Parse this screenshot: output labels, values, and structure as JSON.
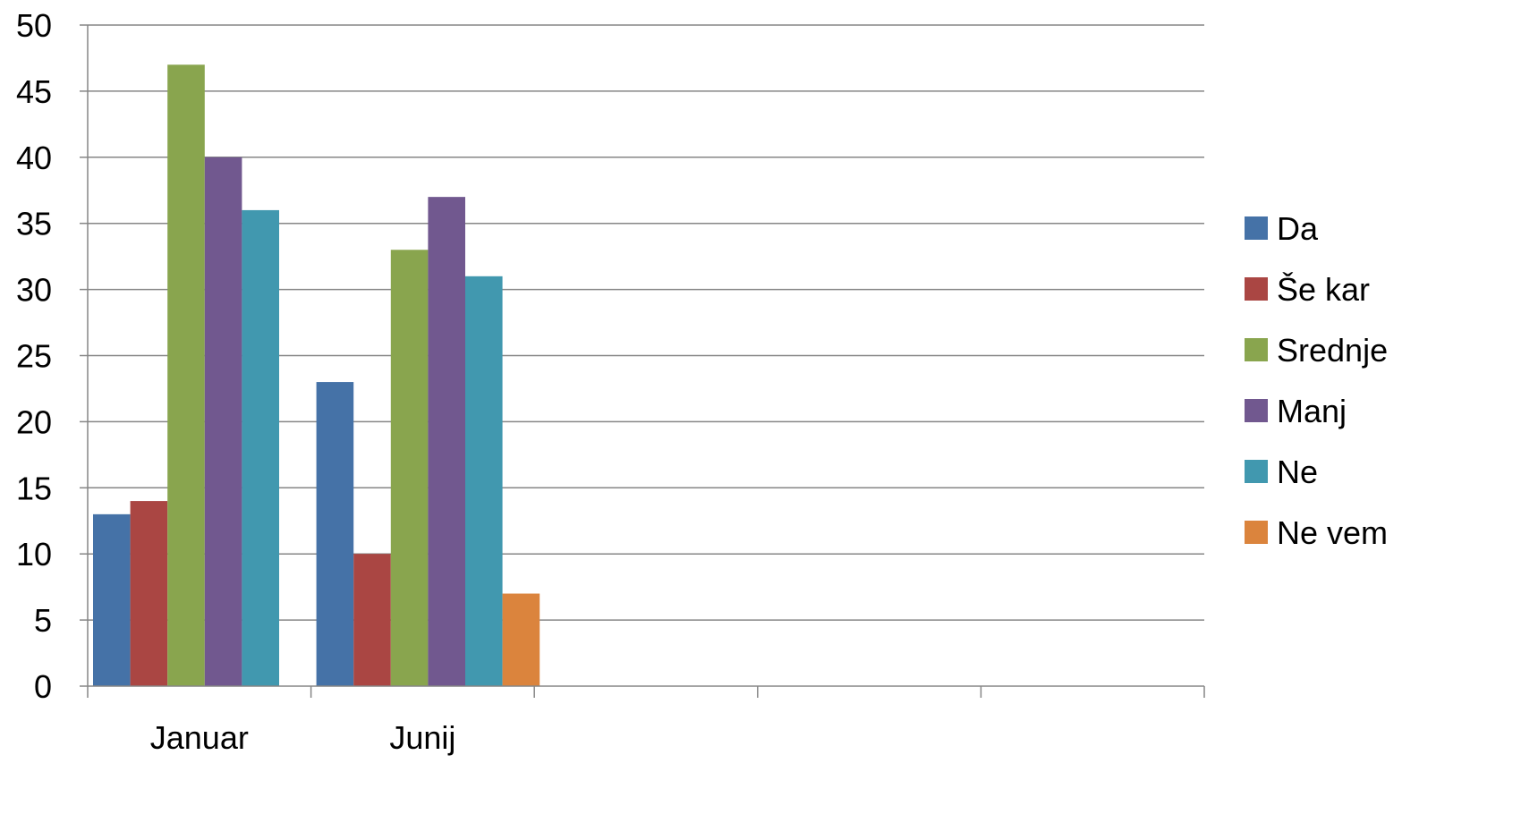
{
  "chart_data": {
    "type": "bar",
    "categories": [
      "Januar",
      "Junij",
      "",
      "",
      ""
    ],
    "series": [
      {
        "name": "Da",
        "color": "#4572A7",
        "values": [
          13,
          23,
          null,
          null,
          null
        ]
      },
      {
        "name": "Še kar",
        "color": "#AA4643",
        "values": [
          14,
          10,
          null,
          null,
          null
        ]
      },
      {
        "name": "Srednje",
        "color": "#89A54E",
        "values": [
          47,
          33,
          null,
          null,
          null
        ]
      },
      {
        "name": "Manj",
        "color": "#71588F",
        "values": [
          40,
          37,
          null,
          null,
          null
        ]
      },
      {
        "name": "Ne",
        "color": "#4198AF",
        "values": [
          36,
          31,
          null,
          null,
          null
        ]
      },
      {
        "name": "Ne vem",
        "color": "#DB843D",
        "values": [
          null,
          7,
          null,
          null,
          null
        ]
      }
    ],
    "y_ticks": [
      "0",
      "5",
      "10",
      "15",
      "20",
      "25",
      "30",
      "35",
      "40",
      "45",
      "50"
    ],
    "ylim": [
      0,
      50
    ],
    "ystep": 5,
    "grid": true,
    "legend_position": "right",
    "gridline_color": "#868686",
    "axis_color": "#868686"
  }
}
